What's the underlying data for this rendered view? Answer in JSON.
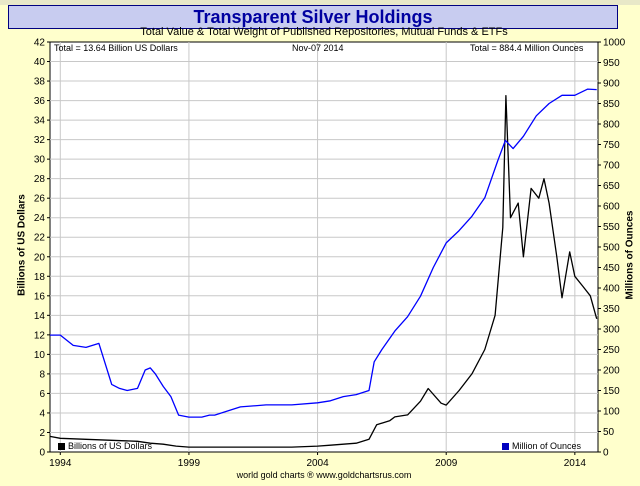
{
  "chart_data": {
    "type": "line",
    "title": "Transparent Silver Holdings",
    "subtitle": "Total Value & Total Weight of Published Repositories, Mutual Funds & ETFs",
    "annotations": {
      "total_value": "Total = 13.64 Billion US Dollars",
      "date": "Nov-07 2014",
      "total_weight": "Total = 884.4 Million Ounces"
    },
    "ylabel_left": "Billions of US Dollars",
    "ylabel_right": "Millions of Ounces",
    "ylim_left": [
      0,
      42
    ],
    "ylim_right": [
      0,
      1000
    ],
    "x_ticks": [
      "1994",
      "1999",
      "2004",
      "2009",
      "2014"
    ],
    "y_ticks_left": [
      0,
      2,
      4,
      6,
      8,
      10,
      12,
      14,
      16,
      18,
      20,
      22,
      24,
      26,
      28,
      30,
      32,
      34,
      36,
      38,
      40,
      42
    ],
    "y_ticks_right": [
      0,
      50,
      100,
      150,
      200,
      250,
      300,
      350,
      400,
      450,
      500,
      550,
      600,
      650,
      700,
      750,
      800,
      850,
      900,
      950,
      1000
    ],
    "xlim": [
      1993.6,
      2014.9
    ],
    "grid": true,
    "legend_placement": "bottom",
    "series": [
      {
        "name": "Billions of US Dollars",
        "axis": "left",
        "color": "#000000",
        "x": [
          1993.6,
          1994.0,
          1995.0,
          1996.0,
          1997.0,
          1997.5,
          1998.0,
          1998.5,
          1999.0,
          2000.0,
          2001.0,
          2002.0,
          2003.0,
          2004.0,
          2004.5,
          2005.0,
          2005.5,
          2006.0,
          2006.3,
          2006.8,
          2007.0,
          2007.5,
          2008.0,
          2008.3,
          2008.8,
          2009.0,
          2009.5,
          2010.0,
          2010.5,
          2010.9,
          2011.2,
          2011.32,
          2011.5,
          2011.8,
          2012.0,
          2012.3,
          2012.6,
          2012.8,
          2013.0,
          2013.3,
          2013.5,
          2013.8,
          2014.0,
          2014.3,
          2014.6,
          2014.85
        ],
        "values": [
          1.6,
          1.4,
          1.3,
          1.2,
          1.1,
          0.9,
          0.8,
          0.6,
          0.5,
          0.5,
          0.5,
          0.5,
          0.5,
          0.6,
          0.7,
          0.8,
          0.9,
          1.3,
          2.8,
          3.2,
          3.6,
          3.8,
          5.2,
          6.5,
          5.0,
          4.8,
          6.3,
          8.0,
          10.5,
          14.0,
          23.0,
          36.5,
          24.0,
          25.5,
          20.0,
          27.0,
          26.0,
          28.0,
          25.5,
          20.0,
          15.8,
          20.5,
          18.0,
          17.0,
          16.0,
          13.64
        ]
      },
      {
        "name": "Million of Ounces",
        "axis": "right",
        "color": "#0000ff",
        "x": [
          1993.6,
          1994.0,
          1994.5,
          1995.0,
          1995.5,
          1996.0,
          1996.3,
          1996.6,
          1997.0,
          1997.3,
          1997.5,
          1997.7,
          1998.0,
          1998.3,
          1998.6,
          1999.0,
          1999.5,
          1999.8,
          2000.0,
          2000.5,
          2001.0,
          2002.0,
          2003.0,
          2004.0,
          2004.5,
          2005.0,
          2005.5,
          2006.0,
          2006.2,
          2006.5,
          2007.0,
          2007.5,
          2008.0,
          2008.5,
          2009.0,
          2009.5,
          2010.0,
          2010.5,
          2011.0,
          2011.3,
          2011.6,
          2012.0,
          2012.5,
          2013.0,
          2013.5,
          2014.0,
          2014.5,
          2014.85
        ],
        "values": [
          285,
          285,
          260,
          255,
          265,
          165,
          155,
          150,
          155,
          200,
          205,
          190,
          160,
          135,
          90,
          85,
          85,
          90,
          90,
          100,
          110,
          115,
          115,
          120,
          125,
          135,
          140,
          150,
          220,
          250,
          295,
          330,
          380,
          450,
          510,
          540,
          575,
          620,
          710,
          760,
          740,
          770,
          820,
          850,
          870,
          870,
          885,
          884
        ]
      }
    ]
  },
  "footer": {
    "credit": "world gold charts ® www.goldchartsrus.com"
  }
}
